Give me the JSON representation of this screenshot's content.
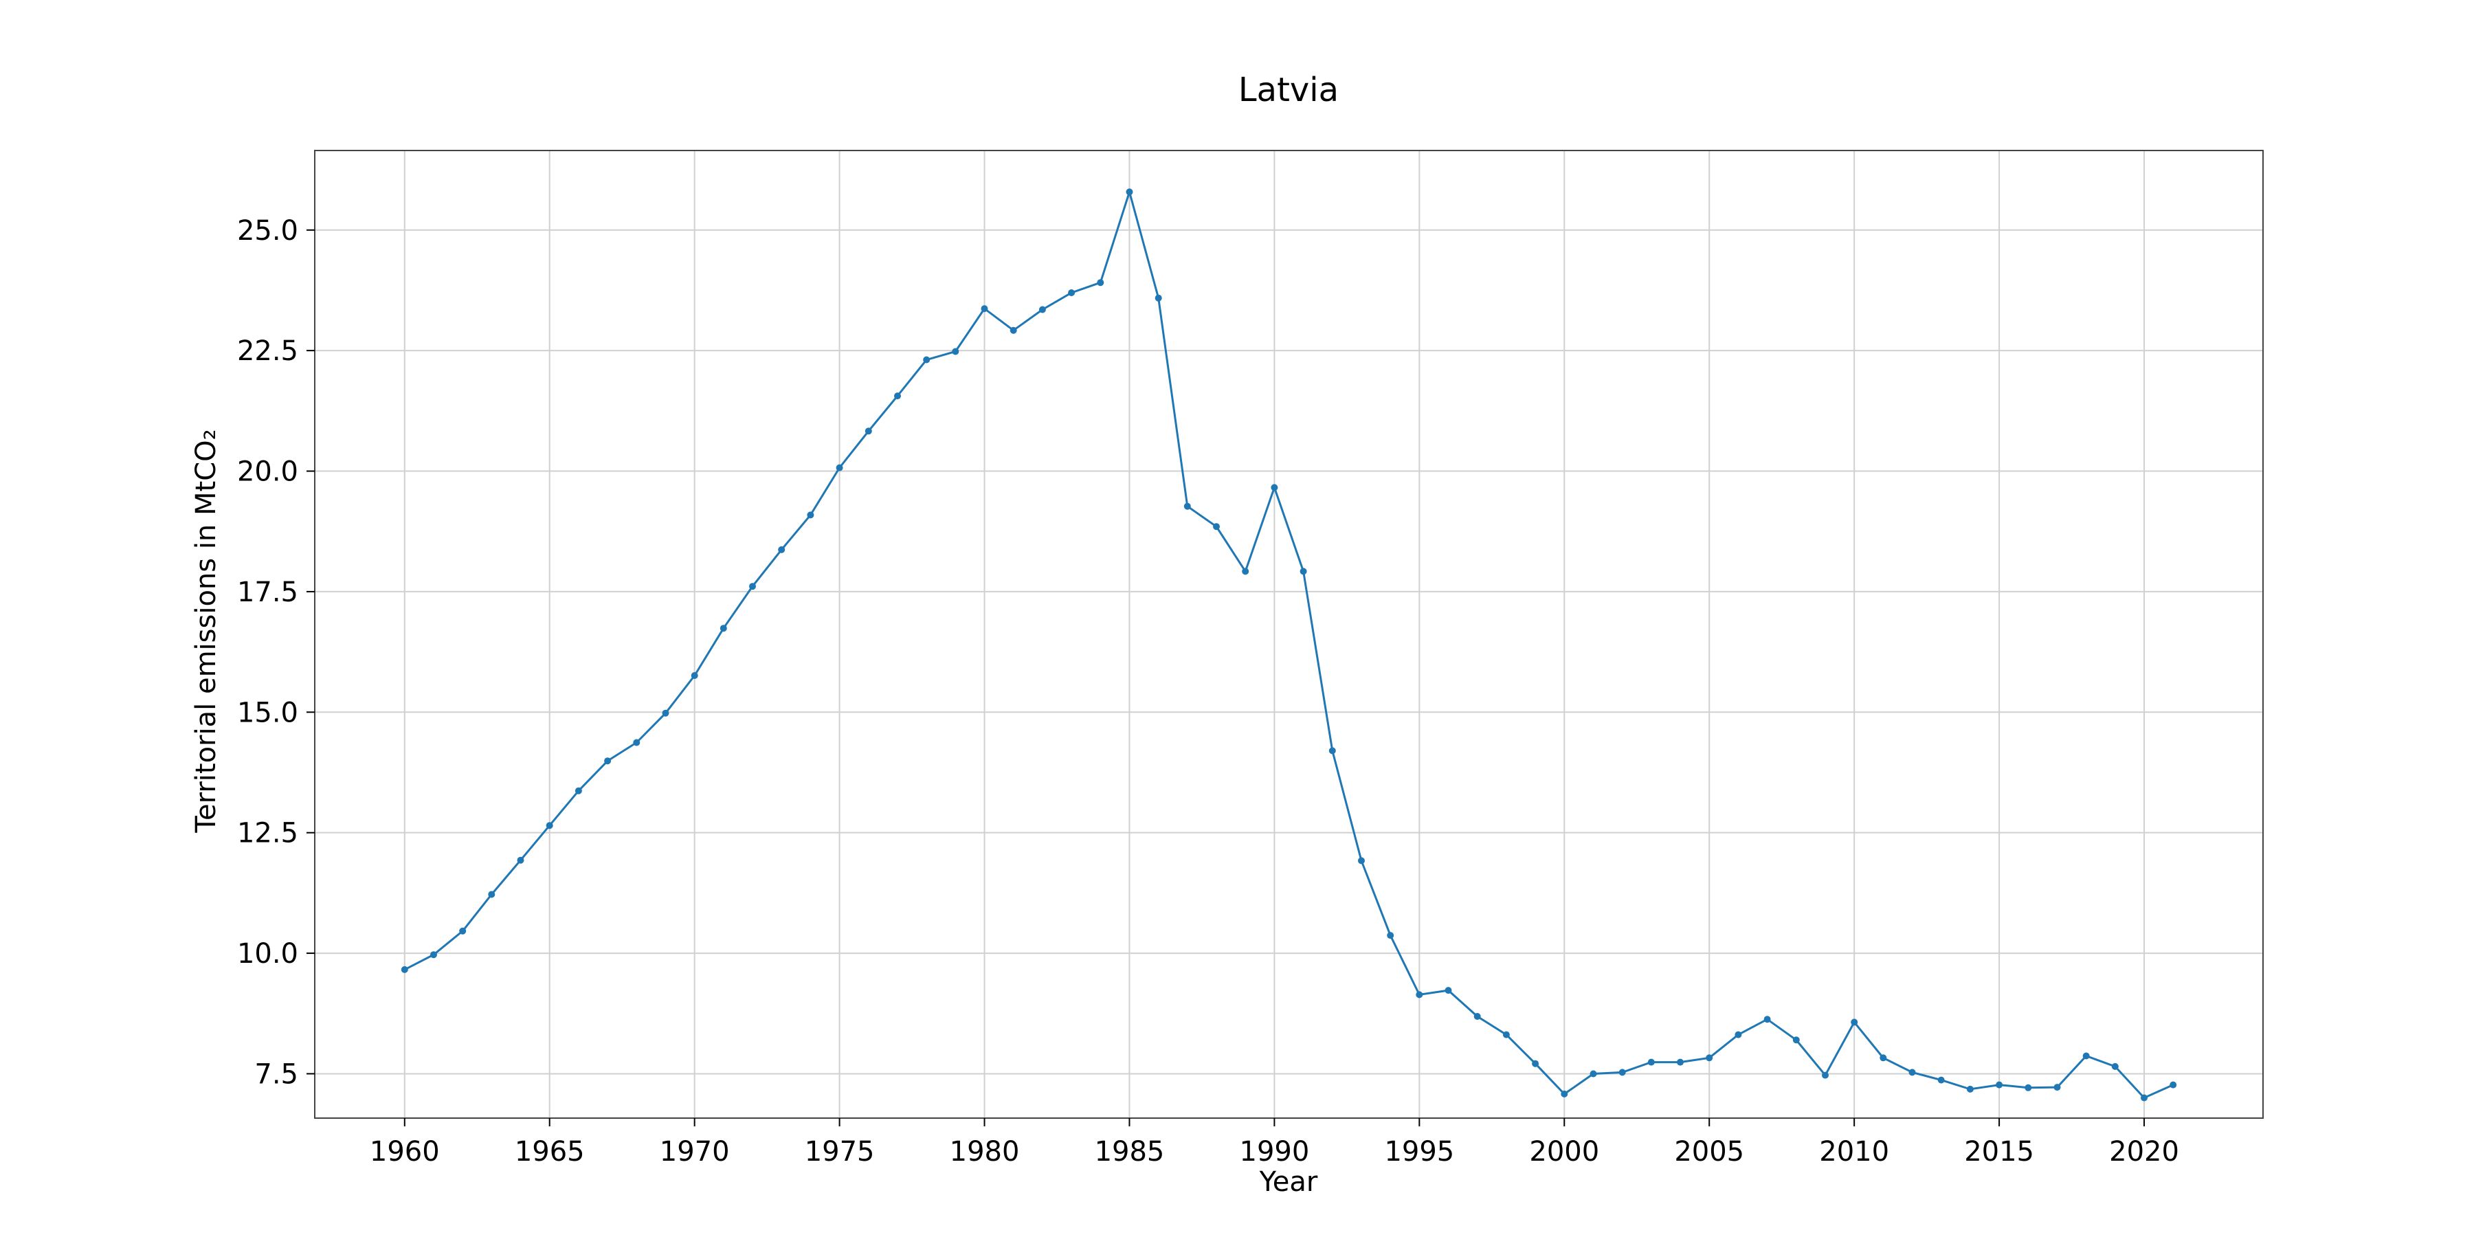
{
  "chart_data": {
    "type": "line",
    "title": "Latvia",
    "xlabel": "Year",
    "ylabel": "Territorial emissions in MtCO₂",
    "xlim": [
      1956.9,
      2024.1
    ],
    "ylim": [
      6.58,
      26.65
    ],
    "xticks": [
      1960,
      1965,
      1970,
      1975,
      1980,
      1985,
      1990,
      1995,
      2000,
      2005,
      2010,
      2015,
      2020
    ],
    "xtick_labels": [
      "1960",
      "1965",
      "1970",
      "1975",
      "1980",
      "1985",
      "1990",
      "1995",
      "2000",
      "2005",
      "2010",
      "2015",
      "2020"
    ],
    "yticks": [
      7.5,
      10.0,
      12.5,
      15.0,
      17.5,
      20.0,
      22.5,
      25.0
    ],
    "ytick_labels": [
      "7.5",
      "10.0",
      "12.5",
      "15.0",
      "17.5",
      "20.0",
      "22.5",
      "25.0"
    ],
    "grid": true,
    "color": "#1f77b4",
    "x": [
      1960,
      1961,
      1962,
      1963,
      1964,
      1965,
      1966,
      1967,
      1968,
      1969,
      1970,
      1971,
      1972,
      1973,
      1974,
      1975,
      1976,
      1977,
      1978,
      1979,
      1980,
      1981,
      1982,
      1983,
      1984,
      1985,
      1986,
      1987,
      1988,
      1989,
      1990,
      1991,
      1992,
      1993,
      1994,
      1995,
      1996,
      1997,
      1998,
      1999,
      2000,
      2001,
      2002,
      2003,
      2004,
      2005,
      2006,
      2007,
      2008,
      2009,
      2010,
      2011,
      2012,
      2013,
      2014,
      2015,
      2016,
      2017,
      2018,
      2019,
      2020,
      2021
    ],
    "y": [
      9.66,
      9.97,
      10.46,
      11.22,
      11.93,
      12.65,
      13.37,
      13.99,
      14.37,
      14.98,
      15.76,
      16.74,
      17.61,
      18.37,
      19.09,
      20.07,
      20.83,
      21.56,
      22.31,
      22.48,
      23.37,
      22.92,
      23.35,
      23.7,
      23.91,
      25.79,
      23.59,
      19.27,
      18.85,
      17.92,
      19.66,
      17.92,
      14.2,
      11.92,
      10.37,
      9.14,
      9.23,
      8.69,
      8.31,
      7.71,
      7.08,
      7.5,
      7.53,
      7.74,
      7.74,
      7.83,
      8.31,
      8.63,
      8.2,
      7.47,
      8.57,
      7.83,
      7.53,
      7.37,
      7.18,
      7.27,
      7.21,
      7.22,
      7.87,
      7.65,
      7.0,
      7.27
    ]
  }
}
